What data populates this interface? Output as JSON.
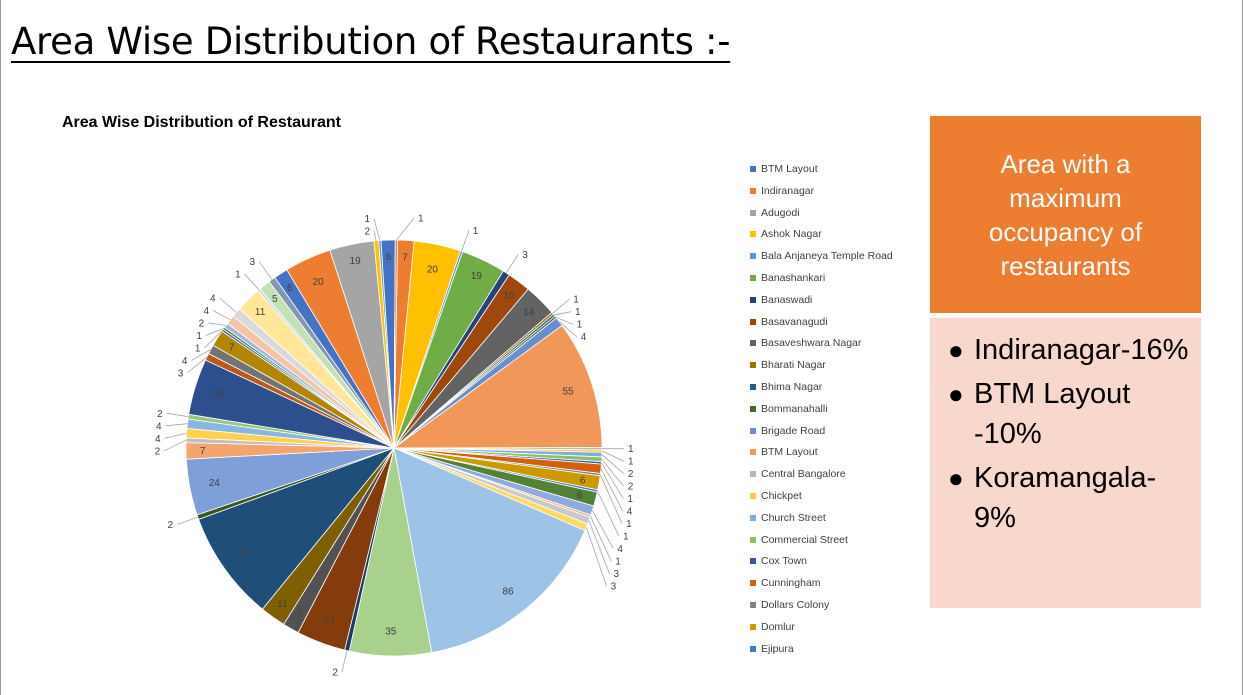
{
  "slide": {
    "title": "Area Wise Distribution of Restaurants :-"
  },
  "callout": {
    "heading": "Area with a maximum occupancy of restaurants",
    "bullets": [
      {
        "text": "Indiranagar-16%"
      },
      {
        "text": "BTM Layout -10%"
      },
      {
        "text": "Koramangala-9%"
      }
    ]
  },
  "chart_data": {
    "type": "pie",
    "title": "Area Wise Distribution of Restaurant",
    "start_angle_deg": 1,
    "direction": "clockwise",
    "legend_position": "right",
    "legend": [
      {
        "label": "BTM Layout",
        "color": "#4472c4"
      },
      {
        "label": "Indiranagar",
        "color": "#ed7d31"
      },
      {
        "label": "Adugodi",
        "color": "#a5a5a5"
      },
      {
        "label": "Ashok Nagar",
        "color": "#ffc000"
      },
      {
        "label": "Bala Anjaneya Temple Road",
        "color": "#5b9bd5"
      },
      {
        "label": "Banashankari",
        "color": "#70ad47"
      },
      {
        "label": "Banaswadi",
        "color": "#264478"
      },
      {
        "label": "Basavanagudi",
        "color": "#9e480e"
      },
      {
        "label": "Basaveshwara Nagar",
        "color": "#636363"
      },
      {
        "label": "Bharati Nagar",
        "color": "#997300"
      },
      {
        "label": "Bhima Nagar",
        "color": "#255e91"
      },
      {
        "label": "Bommanahalli",
        "color": "#43682b"
      },
      {
        "label": "Brigade Road",
        "color": "#698ed0"
      },
      {
        "label": "BTM Layout",
        "color": "#f1975a"
      },
      {
        "label": "Central Bangalore",
        "color": "#b7b7b7"
      },
      {
        "label": "Chickpet",
        "color": "#ffcd33"
      },
      {
        "label": "Church Street",
        "color": "#7cafdd"
      },
      {
        "label": "Commercial Street",
        "color": "#8cc168"
      },
      {
        "label": "Cox Town",
        "color": "#335aa1"
      },
      {
        "label": "Cunningham",
        "color": "#d26012"
      },
      {
        "label": "Dollars Colony",
        "color": "#848484"
      },
      {
        "label": "Domlur",
        "color": "#cc9a00"
      },
      {
        "label": "Ejipura",
        "color": "#3c7dc4"
      }
    ],
    "slices": [
      {
        "value": 7,
        "color": "#ed7d31",
        "label": "7"
      },
      {
        "value": 20,
        "color": "#ffc000",
        "label": "20"
      },
      {
        "value": 1,
        "color": "#5b9bd5",
        "label": "1"
      },
      {
        "value": 19,
        "color": "#70ad47",
        "label": "19"
      },
      {
        "value": 3,
        "color": "#264478",
        "label": "3"
      },
      {
        "value": 10,
        "color": "#9e480e",
        "label": "10"
      },
      {
        "value": 14,
        "color": "#636363",
        "label": "14"
      },
      {
        "value": 1,
        "color": "#997300",
        "label": "1"
      },
      {
        "value": 1,
        "color": "#255e91",
        "label": "1"
      },
      {
        "value": 1,
        "color": "#43682b",
        "label": "1"
      },
      {
        "value": 4,
        "color": "#698ed0",
        "label": "4"
      },
      {
        "value": 55,
        "color": "#f1975a",
        "label": "55"
      },
      {
        "value": 1,
        "color": "#b7b7b7",
        "label": "1"
      },
      {
        "value": 1,
        "color": "#ffcd33",
        "label": "1"
      },
      {
        "value": 2,
        "color": "#7cafdd",
        "label": "2"
      },
      {
        "value": 2,
        "color": "#8cc168",
        "label": "2"
      },
      {
        "value": 1,
        "color": "#335aa1",
        "label": "1"
      },
      {
        "value": 4,
        "color": "#d26012",
        "label": "4"
      },
      {
        "value": 1,
        "color": "#848484",
        "label": "1"
      },
      {
        "value": 6,
        "color": "#cc9a00",
        "label": "6"
      },
      {
        "value": 1,
        "color": "#3c7dc4",
        "label": "1"
      },
      {
        "value": 6,
        "color": "#548235",
        "label": "6"
      },
      {
        "value": 4,
        "color": "#8faadc",
        "label": "4"
      },
      {
        "value": 1,
        "color": "#f4b183",
        "label": "1"
      },
      {
        "value": 3,
        "color": "#c9c9c9",
        "label": "3"
      },
      {
        "value": 3,
        "color": "#ffd966",
        "label": "3"
      },
      {
        "value": 86,
        "color": "#9dc3e6",
        "label": "86"
      },
      {
        "value": 35,
        "color": "#a9d18e",
        "label": "35"
      },
      {
        "value": 2,
        "color": "#203864",
        "label": "2"
      },
      {
        "value": 21,
        "color": "#843c0c",
        "label": "21"
      },
      {
        "value": 7,
        "color": "#525252",
        "label": "7"
      },
      {
        "value": 11,
        "color": "#7f6000",
        "label": "11"
      },
      {
        "value": 47,
        "color": "#1f4e79",
        "label": "47"
      },
      {
        "value": 2,
        "color": "#385723",
        "label": "2"
      },
      {
        "value": 24,
        "color": "#7f9fd8",
        "label": "24"
      },
      {
        "value": 7,
        "color": "#f4a46f",
        "label": "7"
      },
      {
        "value": 2,
        "color": "#c0c0c0",
        "label": "2"
      },
      {
        "value": 4,
        "color": "#ffd24d",
        "label": "4"
      },
      {
        "value": 4,
        "color": "#8ab7e0",
        "label": "4"
      },
      {
        "value": 2,
        "color": "#97c77a",
        "label": "2"
      },
      {
        "value": 24,
        "color": "#2e4f8e",
        "label": "24"
      },
      {
        "value": 3,
        "color": "#b85a1a",
        "label": "3"
      },
      {
        "value": 4,
        "color": "#737373",
        "label": "4"
      },
      {
        "value": 7,
        "color": "#b38600",
        "label": "7"
      },
      {
        "value": 1,
        "color": "#2a6ab0",
        "label": "1"
      },
      {
        "value": 1,
        "color": "#4f7a33",
        "label": "1"
      },
      {
        "value": 2,
        "color": "#a3b8e0",
        "label": "2"
      },
      {
        "value": 4,
        "color": "#f7c3a5",
        "label": "4"
      },
      {
        "value": 4,
        "color": "#d9d9d9",
        "label": "4"
      },
      {
        "value": 11,
        "color": "#ffe699",
        "label": "11"
      },
      {
        "value": 1,
        "color": "#bdd7ee",
        "label": "1"
      },
      {
        "value": 5,
        "color": "#c5e0b4",
        "label": "5"
      },
      {
        "value": 3,
        "color": "#8497b0",
        "label": "3"
      },
      {
        "value": 6,
        "color": "#4472c4",
        "label": "6"
      },
      {
        "value": 20,
        "color": "#ed7d31",
        "label": "20"
      },
      {
        "value": 19,
        "color": "#a5a5a5",
        "label": "19"
      },
      {
        "value": 2,
        "color": "#ffc000",
        "label": "2"
      },
      {
        "value": 1,
        "color": "#5b9bd5",
        "label": "1"
      },
      {
        "value": 6,
        "color": "#4472c4",
        "label": "6"
      },
      {
        "value": 1,
        "color": "#ed7d31",
        "label": "1"
      }
    ]
  }
}
